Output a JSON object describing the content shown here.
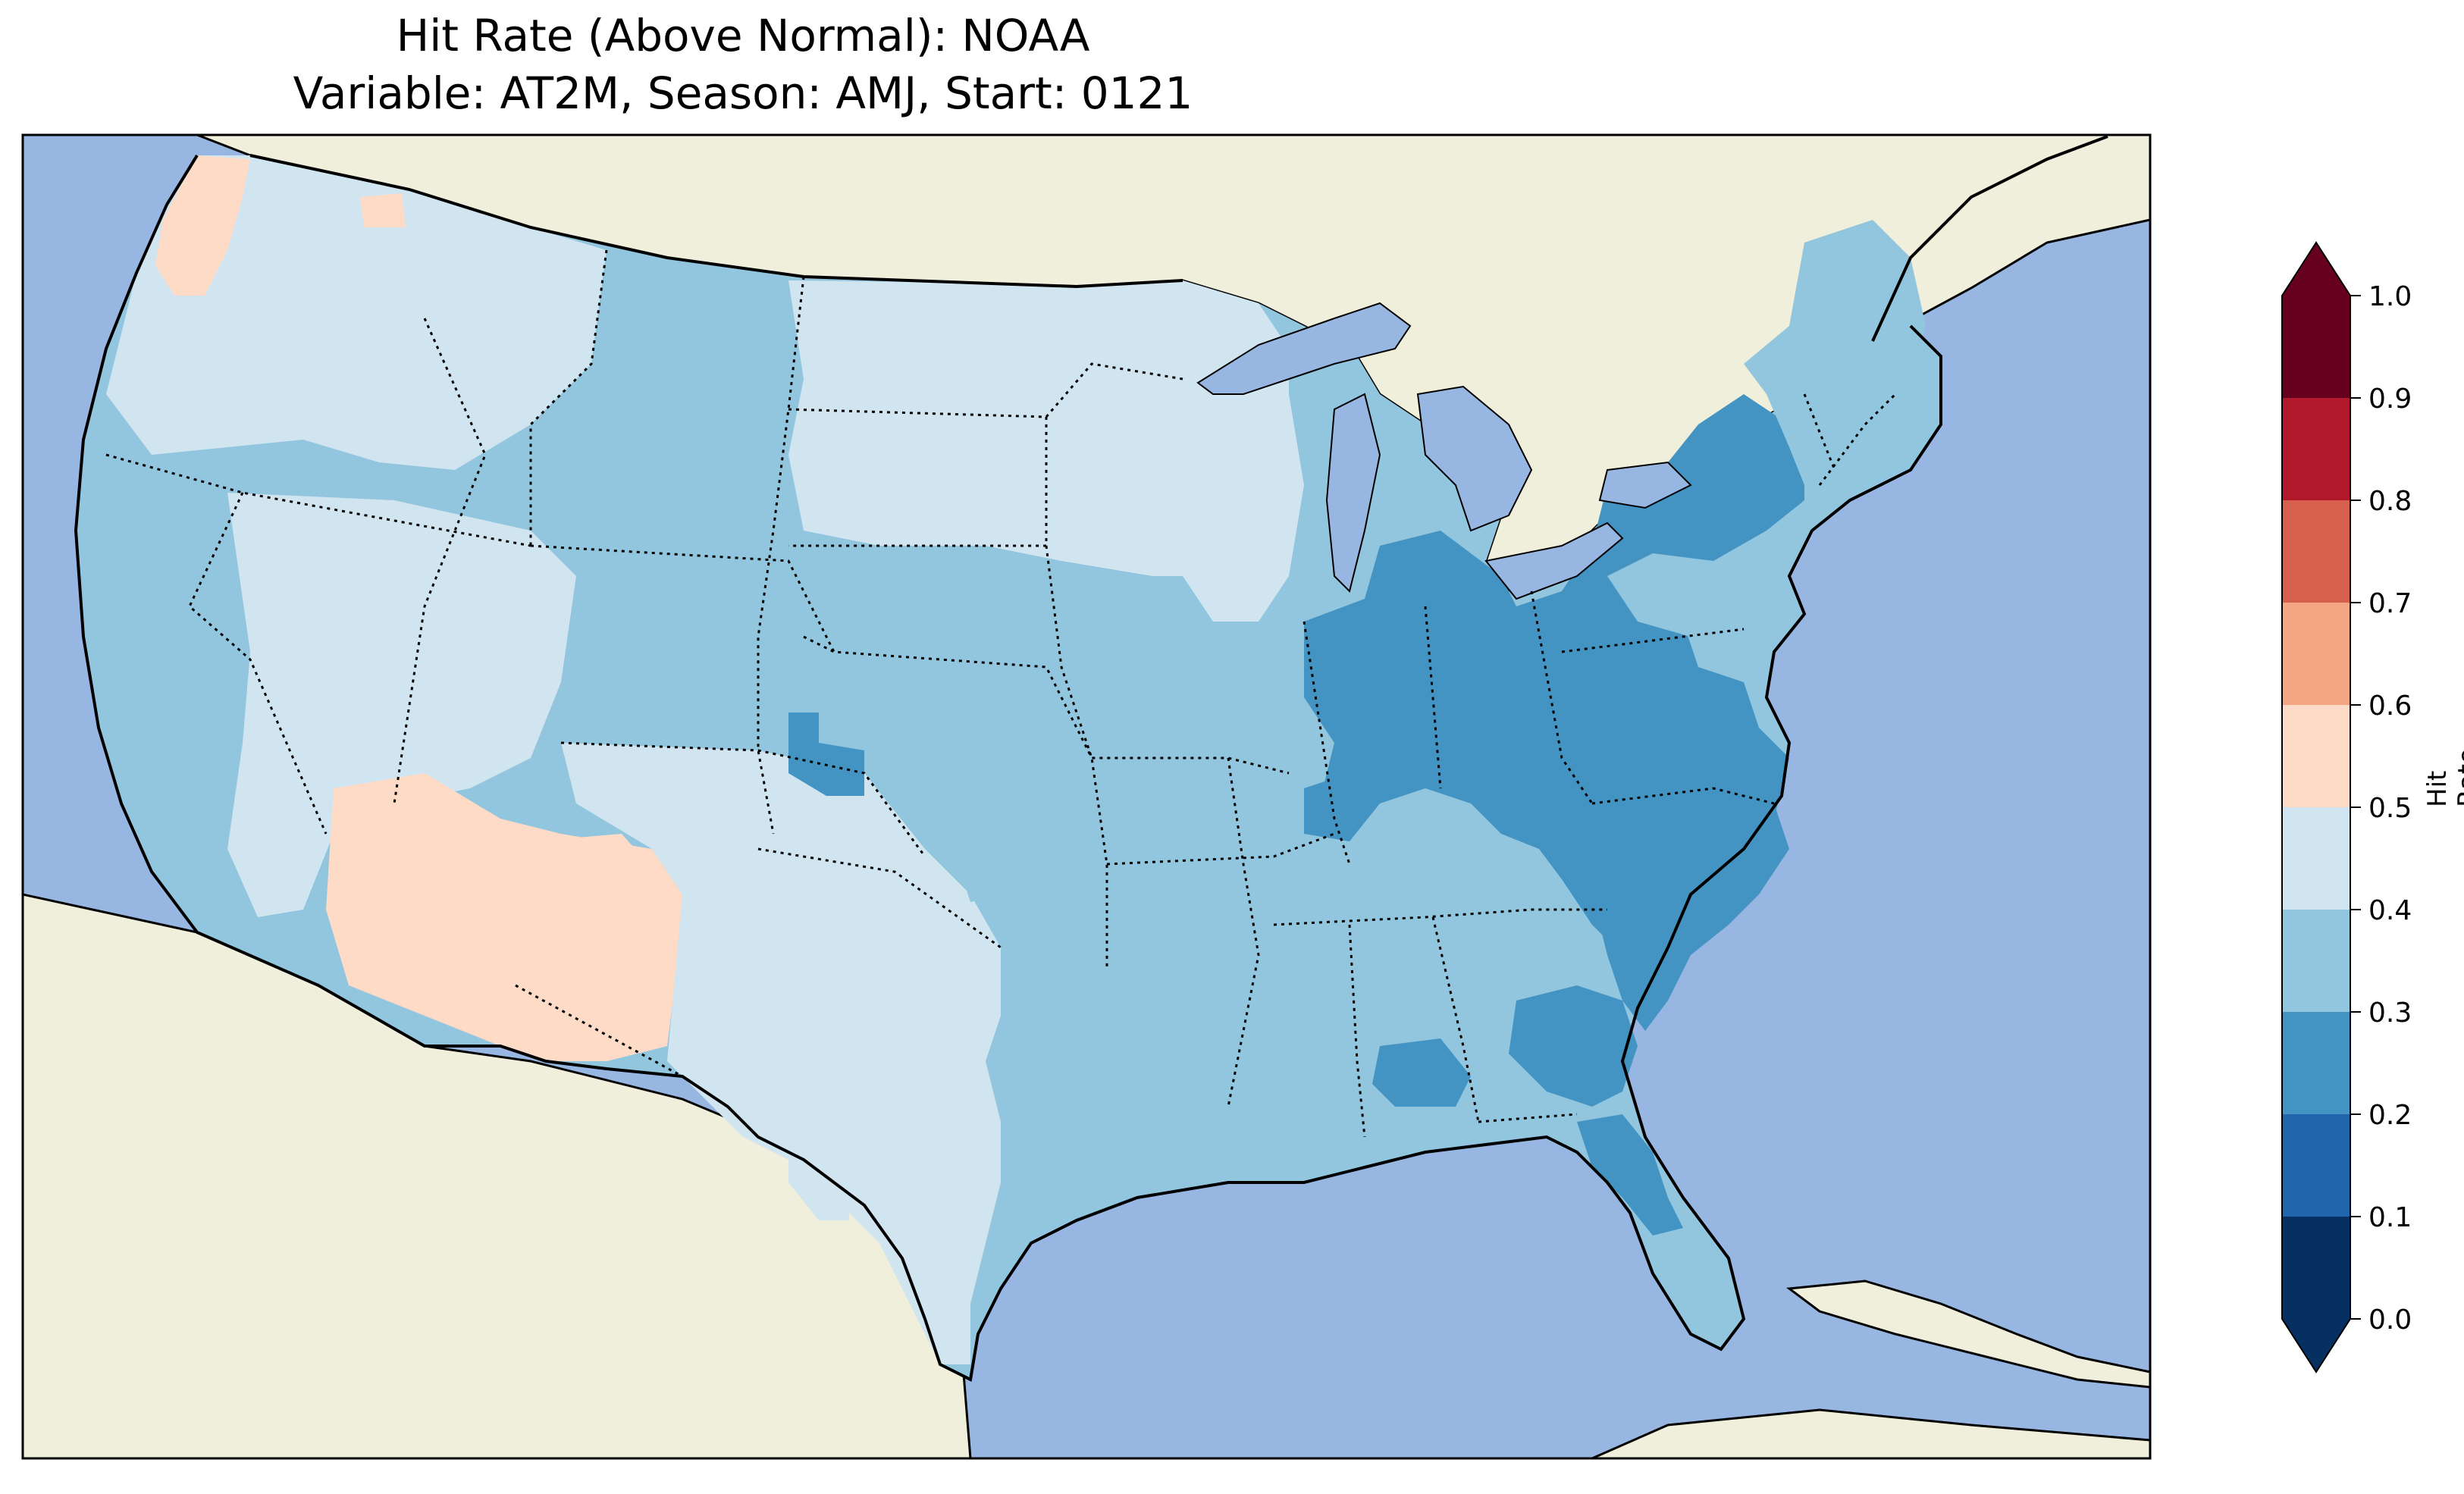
{
  "title_line1": "Hit Rate (Above Normal): NOAA",
  "title_line2": "Variable: AT2M, Season: AMJ, Start: 0121",
  "colorbar": {
    "label": "Hit Rate",
    "ticks": [
      "0.0",
      "0.1",
      "0.2",
      "0.3",
      "0.4",
      "0.5",
      "0.6",
      "0.7",
      "0.8",
      "0.9",
      "1.0"
    ],
    "levels": [
      {
        "range": [
          0.0,
          0.1
        ],
        "color": "#053061"
      },
      {
        "range": [
          0.1,
          0.2
        ],
        "color": "#2166ac"
      },
      {
        "range": [
          0.2,
          0.3
        ],
        "color": "#4393c3"
      },
      {
        "range": [
          0.3,
          0.4
        ],
        "color": "#92c5de"
      },
      {
        "range": [
          0.4,
          0.5
        ],
        "color": "#d1e5f0"
      },
      {
        "range": [
          0.5,
          0.6
        ],
        "color": "#fddbc7"
      },
      {
        "range": [
          0.6,
          0.7
        ],
        "color": "#f4a582"
      },
      {
        "range": [
          0.7,
          0.8
        ],
        "color": "#d6604d"
      },
      {
        "range": [
          0.8,
          0.9
        ],
        "color": "#b2182b"
      },
      {
        "range": [
          0.9,
          1.0
        ],
        "color": "#67001f"
      }
    ],
    "extend_min_color": "#053061",
    "extend_max_color": "#67001f"
  },
  "map": {
    "ocean_color": "#97b6e1",
    "land_color": "#efefdb",
    "regions": [
      {
        "name": "pacific-northwest",
        "value": 0.45
      },
      {
        "name": "northwest-coast-patch",
        "value": 0.55
      },
      {
        "name": "california",
        "value": 0.35
      },
      {
        "name": "great-basin",
        "value": 0.45
      },
      {
        "name": "rockies",
        "value": 0.35
      },
      {
        "name": "southwest",
        "value": 0.55
      },
      {
        "name": "new-mexico",
        "value": 0.55
      },
      {
        "name": "texas",
        "value": 0.45
      },
      {
        "name": "northern-plains",
        "value": 0.45
      },
      {
        "name": "central-plains",
        "value": 0.35
      },
      {
        "name": "midwest",
        "value": 0.35
      },
      {
        "name": "upper-mississippi",
        "value": 0.45
      },
      {
        "name": "ohio-valley",
        "value": 0.25
      },
      {
        "name": "mid-atlantic",
        "value": 0.25
      },
      {
        "name": "northeast",
        "value": 0.35
      },
      {
        "name": "southeast",
        "value": 0.35
      },
      {
        "name": "carolinas",
        "value": 0.25
      },
      {
        "name": "georgia-patch",
        "value": 0.25
      },
      {
        "name": "alabama-patch",
        "value": 0.25
      },
      {
        "name": "north-florida",
        "value": 0.25
      },
      {
        "name": "florida-peninsula",
        "value": 0.35
      },
      {
        "name": "colorado-patch",
        "value": 0.25
      }
    ]
  }
}
